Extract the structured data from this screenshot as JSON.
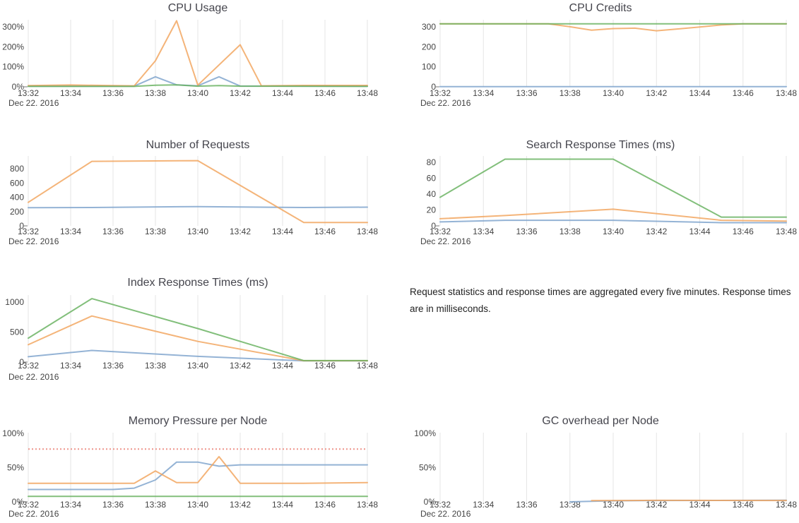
{
  "date_label": "Dec 22. 2016",
  "x_tick_labels": [
    "13:32",
    "13:34",
    "13:36",
    "13:38",
    "13:40",
    "13:42",
    "13:44",
    "13:46",
    "13:48"
  ],
  "note": {
    "text": "Request statistics and response times are aggregated every five minutes. Response times are in milliseconds."
  },
  "colors": {
    "blue": "#7da2cc",
    "orange": "#f2a45c",
    "green": "#66b15e",
    "red_threshold": "#ec8a80",
    "grid": "#e5e5e5",
    "title_text": "#45454d",
    "axis_text": "#444444",
    "tick_mark": "#7a7a7a",
    "background": "#ffffff"
  },
  "chart_data": [
    {
      "id": "cpu-usage",
      "type": "line",
      "title": "CPU Usage",
      "xlabel": "",
      "ylabel": "",
      "x_range_minutes": [
        0,
        16
      ],
      "ylim": [
        0,
        335
      ],
      "y_ticks": [
        0,
        100,
        200,
        300
      ],
      "y_suffix": "%",
      "grid": "vertical-only",
      "legend": "none",
      "series": [
        {
          "name": "blue",
          "color": "blue",
          "points": [
            [
              0,
              3
            ],
            [
              5,
              3
            ],
            [
              6,
              50
            ],
            [
              7,
              10
            ],
            [
              8,
              5
            ],
            [
              9,
              50
            ],
            [
              10,
              4
            ],
            [
              16,
              3
            ]
          ]
        },
        {
          "name": "orange",
          "color": "orange",
          "points": [
            [
              0,
              6
            ],
            [
              2,
              9
            ],
            [
              4,
              6
            ],
            [
              5,
              5
            ],
            [
              6,
              130
            ],
            [
              7,
              330
            ],
            [
              8,
              8
            ],
            [
              10,
              210
            ],
            [
              11,
              5
            ],
            [
              13,
              7
            ],
            [
              16,
              7
            ]
          ]
        },
        {
          "name": "green",
          "color": "green",
          "points": [
            [
              0,
              2
            ],
            [
              5,
              2
            ],
            [
              6,
              8
            ],
            [
              7,
              10
            ],
            [
              8,
              3
            ],
            [
              9,
              6
            ],
            [
              10,
              3
            ],
            [
              16,
              2
            ]
          ]
        }
      ]
    },
    {
      "id": "cpu-credits",
      "type": "line",
      "title": "CPU Credits",
      "xlabel": "",
      "ylabel": "",
      "x_range_minutes": [
        0,
        16
      ],
      "ylim": [
        0,
        335
      ],
      "y_ticks": [
        0,
        100,
        200,
        300
      ],
      "y_suffix": "",
      "grid": "vertical-only",
      "legend": "none",
      "series": [
        {
          "name": "blue",
          "color": "blue",
          "points": [
            [
              0,
              1
            ],
            [
              16,
              1
            ]
          ]
        },
        {
          "name": "orange",
          "color": "orange",
          "points": [
            [
              0,
              315
            ],
            [
              5,
              315
            ],
            [
              6,
              300
            ],
            [
              7,
              283
            ],
            [
              8,
              291
            ],
            [
              9,
              293
            ],
            [
              10,
              280
            ],
            [
              11,
              289
            ],
            [
              12,
              299
            ],
            [
              13,
              309
            ],
            [
              14,
              315
            ],
            [
              16,
              315
            ]
          ]
        },
        {
          "name": "green",
          "color": "green",
          "points": [
            [
              0,
              315
            ],
            [
              16,
              315
            ]
          ]
        }
      ]
    },
    {
      "id": "number-of-requests",
      "type": "line",
      "title": "Number of Requests",
      "xlabel": "",
      "ylabel": "",
      "x_range_minutes": [
        0,
        16
      ],
      "ylim": [
        0,
        980
      ],
      "y_ticks": [
        0,
        200,
        400,
        600,
        800
      ],
      "y_suffix": "",
      "grid": "vertical-only",
      "legend": "none",
      "series": [
        {
          "name": "blue",
          "color": "blue",
          "points": [
            [
              0,
              255
            ],
            [
              3,
              257
            ],
            [
              8,
              270
            ],
            [
              13,
              257
            ],
            [
              16,
              262
            ]
          ]
        },
        {
          "name": "orange",
          "color": "orange",
          "points": [
            [
              0,
              330
            ],
            [
              3,
              905
            ],
            [
              8,
              915
            ],
            [
              13,
              48
            ],
            [
              16,
              48
            ]
          ]
        }
      ]
    },
    {
      "id": "search-response-times",
      "type": "line",
      "title": "Search Response Times (ms)",
      "xlabel": "",
      "ylabel": "",
      "x_range_minutes": [
        0,
        16
      ],
      "ylim": [
        0,
        88
      ],
      "y_ticks": [
        0,
        20,
        40,
        60,
        80
      ],
      "y_suffix": "",
      "grid": "vertical-only",
      "legend": "none",
      "series": [
        {
          "name": "blue",
          "color": "blue",
          "points": [
            [
              0,
              5
            ],
            [
              3,
              7
            ],
            [
              8,
              7
            ],
            [
              13,
              4
            ],
            [
              16,
              4
            ]
          ]
        },
        {
          "name": "orange",
          "color": "orange",
          "points": [
            [
              0,
              9
            ],
            [
              3,
              13
            ],
            [
              8,
              21
            ],
            [
              13,
              7
            ],
            [
              16,
              6
            ]
          ]
        },
        {
          "name": "green",
          "color": "green",
          "points": [
            [
              0,
              36
            ],
            [
              3,
              84
            ],
            [
              8,
              84
            ],
            [
              13,
              11
            ],
            [
              16,
              11
            ]
          ]
        }
      ]
    },
    {
      "id": "index-response-times",
      "type": "line",
      "title": "Index Response Times (ms)",
      "xlabel": "",
      "ylabel": "",
      "x_range_minutes": [
        0,
        16
      ],
      "ylim": [
        0,
        1120
      ],
      "y_ticks": [
        0,
        500,
        1000
      ],
      "y_suffix": "",
      "grid": "vertical-only",
      "legend": "none",
      "series": [
        {
          "name": "blue",
          "color": "blue",
          "points": [
            [
              0,
              90
            ],
            [
              3,
              195
            ],
            [
              8,
              95
            ],
            [
              13,
              20
            ],
            [
              16,
              20
            ]
          ]
        },
        {
          "name": "orange",
          "color": "orange",
          "points": [
            [
              0,
              290
            ],
            [
              3,
              770
            ],
            [
              8,
              345
            ],
            [
              13,
              22
            ],
            [
              16,
              22
            ]
          ]
        },
        {
          "name": "green",
          "color": "green",
          "points": [
            [
              0,
              400
            ],
            [
              3,
              1060
            ],
            [
              8,
              560
            ],
            [
              13,
              25
            ],
            [
              16,
              25
            ]
          ]
        }
      ]
    },
    {
      "id": "memory-pressure",
      "type": "line",
      "title": "Memory Pressure per Node",
      "xlabel": "",
      "ylabel": "",
      "x_range_minutes": [
        0,
        16
      ],
      "ylim": [
        0,
        101
      ],
      "y_ticks": [
        0,
        50,
        100
      ],
      "y_suffix": "%",
      "grid": "vertical-only",
      "legend": "none",
      "threshold": {
        "value": 77,
        "style": "dotted",
        "color": "red_threshold"
      },
      "series": [
        {
          "name": "blue",
          "color": "blue",
          "points": [
            [
              0,
              18
            ],
            [
              4,
              18
            ],
            [
              5,
              20
            ],
            [
              6,
              32
            ],
            [
              7,
              58
            ],
            [
              8,
              58
            ],
            [
              9,
              52
            ],
            [
              10,
              54
            ],
            [
              16,
              54
            ]
          ]
        },
        {
          "name": "orange",
          "color": "orange",
          "points": [
            [
              0,
              27
            ],
            [
              5,
              27
            ],
            [
              6,
              45
            ],
            [
              7,
              28
            ],
            [
              8,
              28
            ],
            [
              9,
              66
            ],
            [
              10,
              27
            ],
            [
              13,
              27
            ],
            [
              16,
              28
            ]
          ]
        },
        {
          "name": "green",
          "color": "green",
          "points": [
            [
              0,
              8
            ],
            [
              16,
              8
            ]
          ]
        }
      ]
    },
    {
      "id": "gc-overhead",
      "type": "line",
      "title": "GC overhead per Node",
      "xlabel": "",
      "ylabel": "",
      "x_range_minutes": [
        0,
        16
      ],
      "ylim": [
        0,
        101
      ],
      "y_ticks": [
        0,
        50,
        100
      ],
      "y_suffix": "%",
      "grid": "vertical-only",
      "legend": "none",
      "series": [
        {
          "name": "blue",
          "color": "blue",
          "points": [
            [
              6,
              0
            ],
            [
              8,
              1.5
            ],
            [
              10,
              2
            ],
            [
              16,
              2.3
            ]
          ]
        },
        {
          "name": "orange",
          "color": "orange",
          "points": [
            [
              7,
              1.8
            ],
            [
              10,
              2.2
            ],
            [
              16,
              2
            ]
          ]
        }
      ]
    }
  ]
}
